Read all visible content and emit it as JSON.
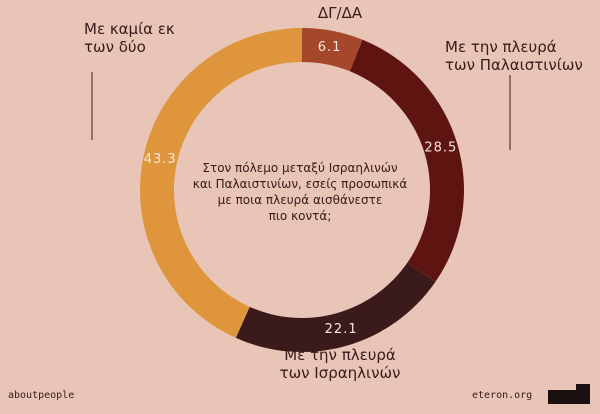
{
  "chart_data": {
    "type": "donut",
    "title": "Στον πόλεμο μεταξύ Ισραηλινών\nκαι Παλαιστινίων, εσείς προσωπικά\nμε ποια πλευρά αισθάνεστε\nπιο κοντά;",
    "categories": [
      "ΔΓ/ΔΑ",
      "Με την πλευρά\nτων Παλαιστινίων",
      "Με την πλευρά\nτων Ισραηλινών",
      "Με καμία εκ\nτων δύο"
    ],
    "values": [
      6.1,
      28.5,
      22.1,
      43.3
    ],
    "colors": [
      "#a4472a",
      "#5e1512",
      "#3b1a1c",
      "#df953b"
    ],
    "source_left": "aboutpeople",
    "source_right": "eteron.org"
  }
}
